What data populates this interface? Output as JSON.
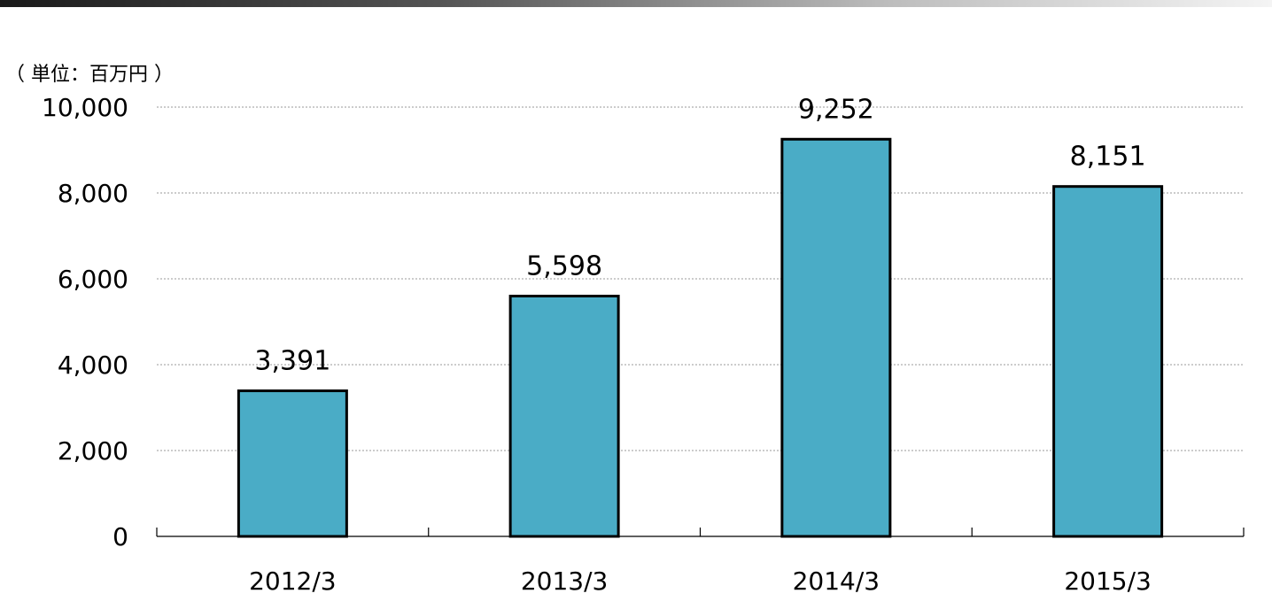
{
  "header_bar": {
    "color_start": "#1a1a1a",
    "color_end": "#f4f4f4"
  },
  "unit_label": "（ 単位：百万円 ）",
  "chart_data": {
    "type": "bar",
    "categories": [
      "2012/3",
      "2013/3",
      "2014/3",
      "2015/3"
    ],
    "values": [
      3391,
      5598,
      9252,
      8151
    ],
    "value_labels": [
      "3,391",
      "5,598",
      "9,252",
      "8,151"
    ],
    "title": "",
    "xlabel": "",
    "ylabel": "",
    "ylim": [
      0,
      10000
    ],
    "yticks": [
      0,
      2000,
      4000,
      6000,
      8000,
      10000
    ],
    "ytick_labels": [
      "0",
      "2,000",
      "4,000",
      "6,000",
      "8,000",
      "10,000"
    ],
    "grid": true,
    "bar_color": "#4aacc6",
    "bar_edge_color": "#000000"
  }
}
